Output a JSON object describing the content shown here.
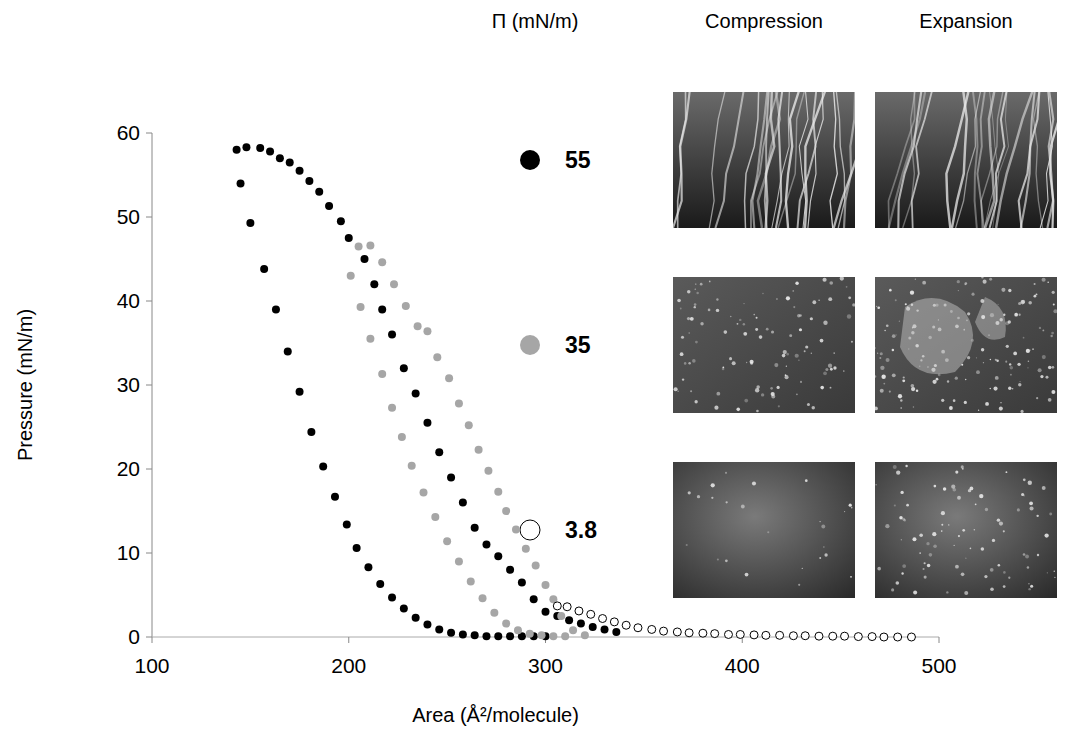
{
  "chart_data": {
    "type": "scatter",
    "x_label": "Area (Å²/molecule)",
    "y_label": "Pressure (mN/m)",
    "legend_title": "Π (mN/m)",
    "image_columns": [
      "Compression",
      "Expansion"
    ],
    "xlim": [
      100,
      500
    ],
    "xticks": [
      100,
      200,
      300,
      400,
      500
    ],
    "ylim": [
      0,
      60
    ],
    "yticks": [
      0,
      10,
      20,
      30,
      40,
      50,
      60
    ],
    "grid": false,
    "series": [
      {
        "name": "55",
        "color": "#000000",
        "marker": "filled",
        "x": [
          336,
          330,
          324,
          318,
          312,
          306,
          300,
          294,
          288,
          282,
          276,
          270,
          264,
          258,
          252,
          246,
          240,
          234,
          228,
          222,
          217,
          213,
          208,
          200,
          196,
          190,
          185,
          180,
          175,
          170,
          165,
          160,
          155,
          148,
          143,
          145,
          150,
          157,
          163,
          169,
          175,
          181,
          187,
          193,
          199,
          204,
          210,
          216,
          222,
          228,
          234,
          240,
          246,
          252,
          258,
          264,
          270,
          276,
          282,
          288,
          294,
          300
        ],
        "values": [
          0.6,
          0.9,
          1.2,
          1.6,
          2.0,
          2.5,
          3.0,
          4.5,
          6.5,
          8.0,
          9.6,
          11.0,
          13.0,
          16.0,
          19.0,
          22.0,
          25.5,
          29.0,
          32.0,
          36.0,
          39.0,
          42.0,
          45.0,
          47.5,
          49.5,
          51.3,
          53.0,
          54.3,
          55.5,
          56.5,
          57.0,
          57.8,
          58.2,
          58.3,
          58.0,
          54.0,
          49.3,
          43.8,
          39.0,
          34.0,
          29.2,
          24.4,
          20.3,
          16.7,
          13.4,
          10.6,
          8.3,
          6.3,
          4.7,
          3.4,
          2.3,
          1.5,
          0.9,
          0.5,
          0.3,
          0.2,
          0.1,
          0.1,
          0.1,
          0.1,
          0.1,
          0.1
        ]
      },
      {
        "name": "35",
        "color": "#a6a6a6",
        "marker": "filled",
        "x": [
          320,
          314,
          308,
          304,
          300,
          295,
          290,
          285,
          280,
          276,
          271,
          266,
          261,
          256,
          251,
          245,
          240,
          235,
          229,
          223,
          217,
          211,
          205,
          201,
          206,
          211,
          217,
          222,
          227,
          232,
          238,
          244,
          250,
          256,
          262,
          268,
          274,
          280,
          286,
          292,
          298,
          304,
          310
        ],
        "values": [
          0.2,
          0.8,
          2.5,
          4.5,
          6.2,
          8.5,
          10.5,
          12.8,
          15.0,
          17.3,
          19.8,
          22.3,
          25.2,
          27.8,
          30.8,
          33.3,
          36.4,
          37.0,
          39.4,
          42.0,
          44.6,
          46.6,
          46.5,
          43.0,
          39.3,
          35.5,
          31.3,
          27.3,
          23.8,
          20.4,
          17.2,
          14.3,
          11.4,
          9.0,
          6.6,
          4.6,
          2.9,
          1.6,
          0.8,
          0.4,
          0.2,
          0.1,
          0.1
        ]
      },
      {
        "name": "3.8",
        "color": "#000000",
        "marker": "open",
        "x": [
          486,
          479,
          472,
          466,
          459,
          452,
          446,
          439,
          432,
          426,
          419,
          412,
          406,
          399,
          393,
          386,
          380,
          373,
          367,
          360,
          354,
          347,
          341,
          335,
          329,
          323,
          317,
          311,
          306
        ],
        "values": [
          0,
          0,
          0,
          0.05,
          0.05,
          0.1,
          0.1,
          0.1,
          0.15,
          0.15,
          0.2,
          0.2,
          0.25,
          0.3,
          0.3,
          0.4,
          0.45,
          0.5,
          0.6,
          0.7,
          0.9,
          1.1,
          1.4,
          1.8,
          2.2,
          2.7,
          3.1,
          3.6,
          3.7
        ]
      }
    ]
  }
}
